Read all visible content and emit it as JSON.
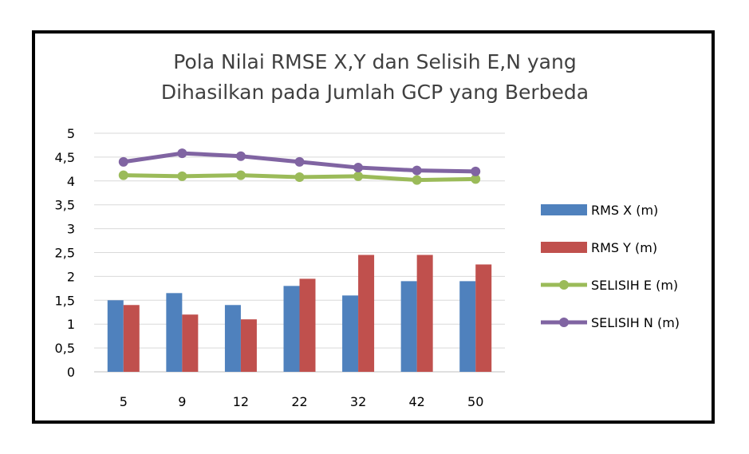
{
  "chart_data": {
    "type": "bar",
    "title": [
      "Pola Nilai RMSE X,Y dan Selisih E,N yang",
      "Dihasilkan pada Jumlah GCP yang Berbeda"
    ],
    "categories": [
      "5",
      "9",
      "12",
      "22",
      "32",
      "42",
      "50"
    ],
    "ylim": [
      0,
      5
    ],
    "yticks": [
      "0",
      "0,5",
      "1",
      "1,5",
      "2",
      "2,5",
      "3",
      "3,5",
      "4",
      "4,5",
      "5"
    ],
    "grid": true,
    "legend_position": "right",
    "series": [
      {
        "name": "RMS X (m)",
        "kind": "bar",
        "color": "#4F81BD",
        "values": [
          1.5,
          1.65,
          1.4,
          1.8,
          1.6,
          1.9,
          1.9
        ]
      },
      {
        "name": "RMS Y (m)",
        "kind": "bar",
        "color": "#C0504D",
        "values": [
          1.4,
          1.2,
          1.1,
          1.95,
          2.45,
          2.45,
          2.25
        ]
      },
      {
        "name": "SELISIH E (m)",
        "kind": "line",
        "color": "#9BBB59",
        "values": [
          4.12,
          4.1,
          4.12,
          4.08,
          4.1,
          4.02,
          4.04
        ]
      },
      {
        "name": "SELISIH N (m)",
        "kind": "line",
        "color": "#8064A2",
        "values": [
          4.4,
          4.58,
          4.52,
          4.4,
          4.28,
          4.22,
          4.2
        ]
      }
    ]
  }
}
